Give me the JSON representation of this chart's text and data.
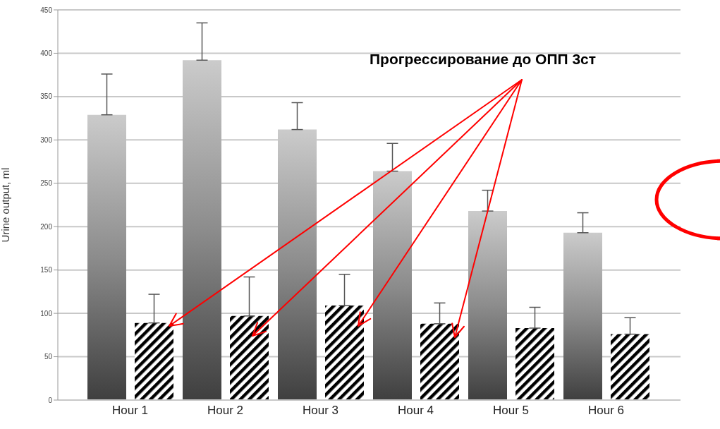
{
  "chart_data": {
    "type": "bar",
    "ylabel": "Urine output, ml",
    "categories": [
      "Hour 1",
      "Hour 2",
      "Hour 3",
      "Hour 4",
      "Hour 5",
      "Hour 6"
    ],
    "series": [
      {
        "color": "#8c8c8c",
        "values": [
          329,
          392,
          312,
          264,
          218,
          193
        ],
        "errors": [
          [
            329,
            376
          ],
          [
            392,
            435
          ],
          [
            312,
            343
          ],
          [
            264,
            296
          ],
          [
            218,
            242
          ],
          [
            193,
            216
          ]
        ]
      },
      {
        "color": "#000000",
        "values": [
          89,
          97,
          109,
          88,
          83,
          76
        ],
        "errors": [
          [
            89,
            122
          ],
          [
            97,
            142
          ],
          [
            109,
            145
          ],
          [
            88,
            112
          ],
          [
            83,
            107
          ],
          [
            76,
            95
          ]
        ]
      }
    ],
    "ylim": [
      0,
      450
    ],
    "yticks": [
      0,
      50,
      100,
      150,
      200,
      250,
      300,
      350,
      400,
      450
    ],
    "grid": "y",
    "annotations": [
      "Прогрессирование до ОПП 3ст"
    ]
  }
}
